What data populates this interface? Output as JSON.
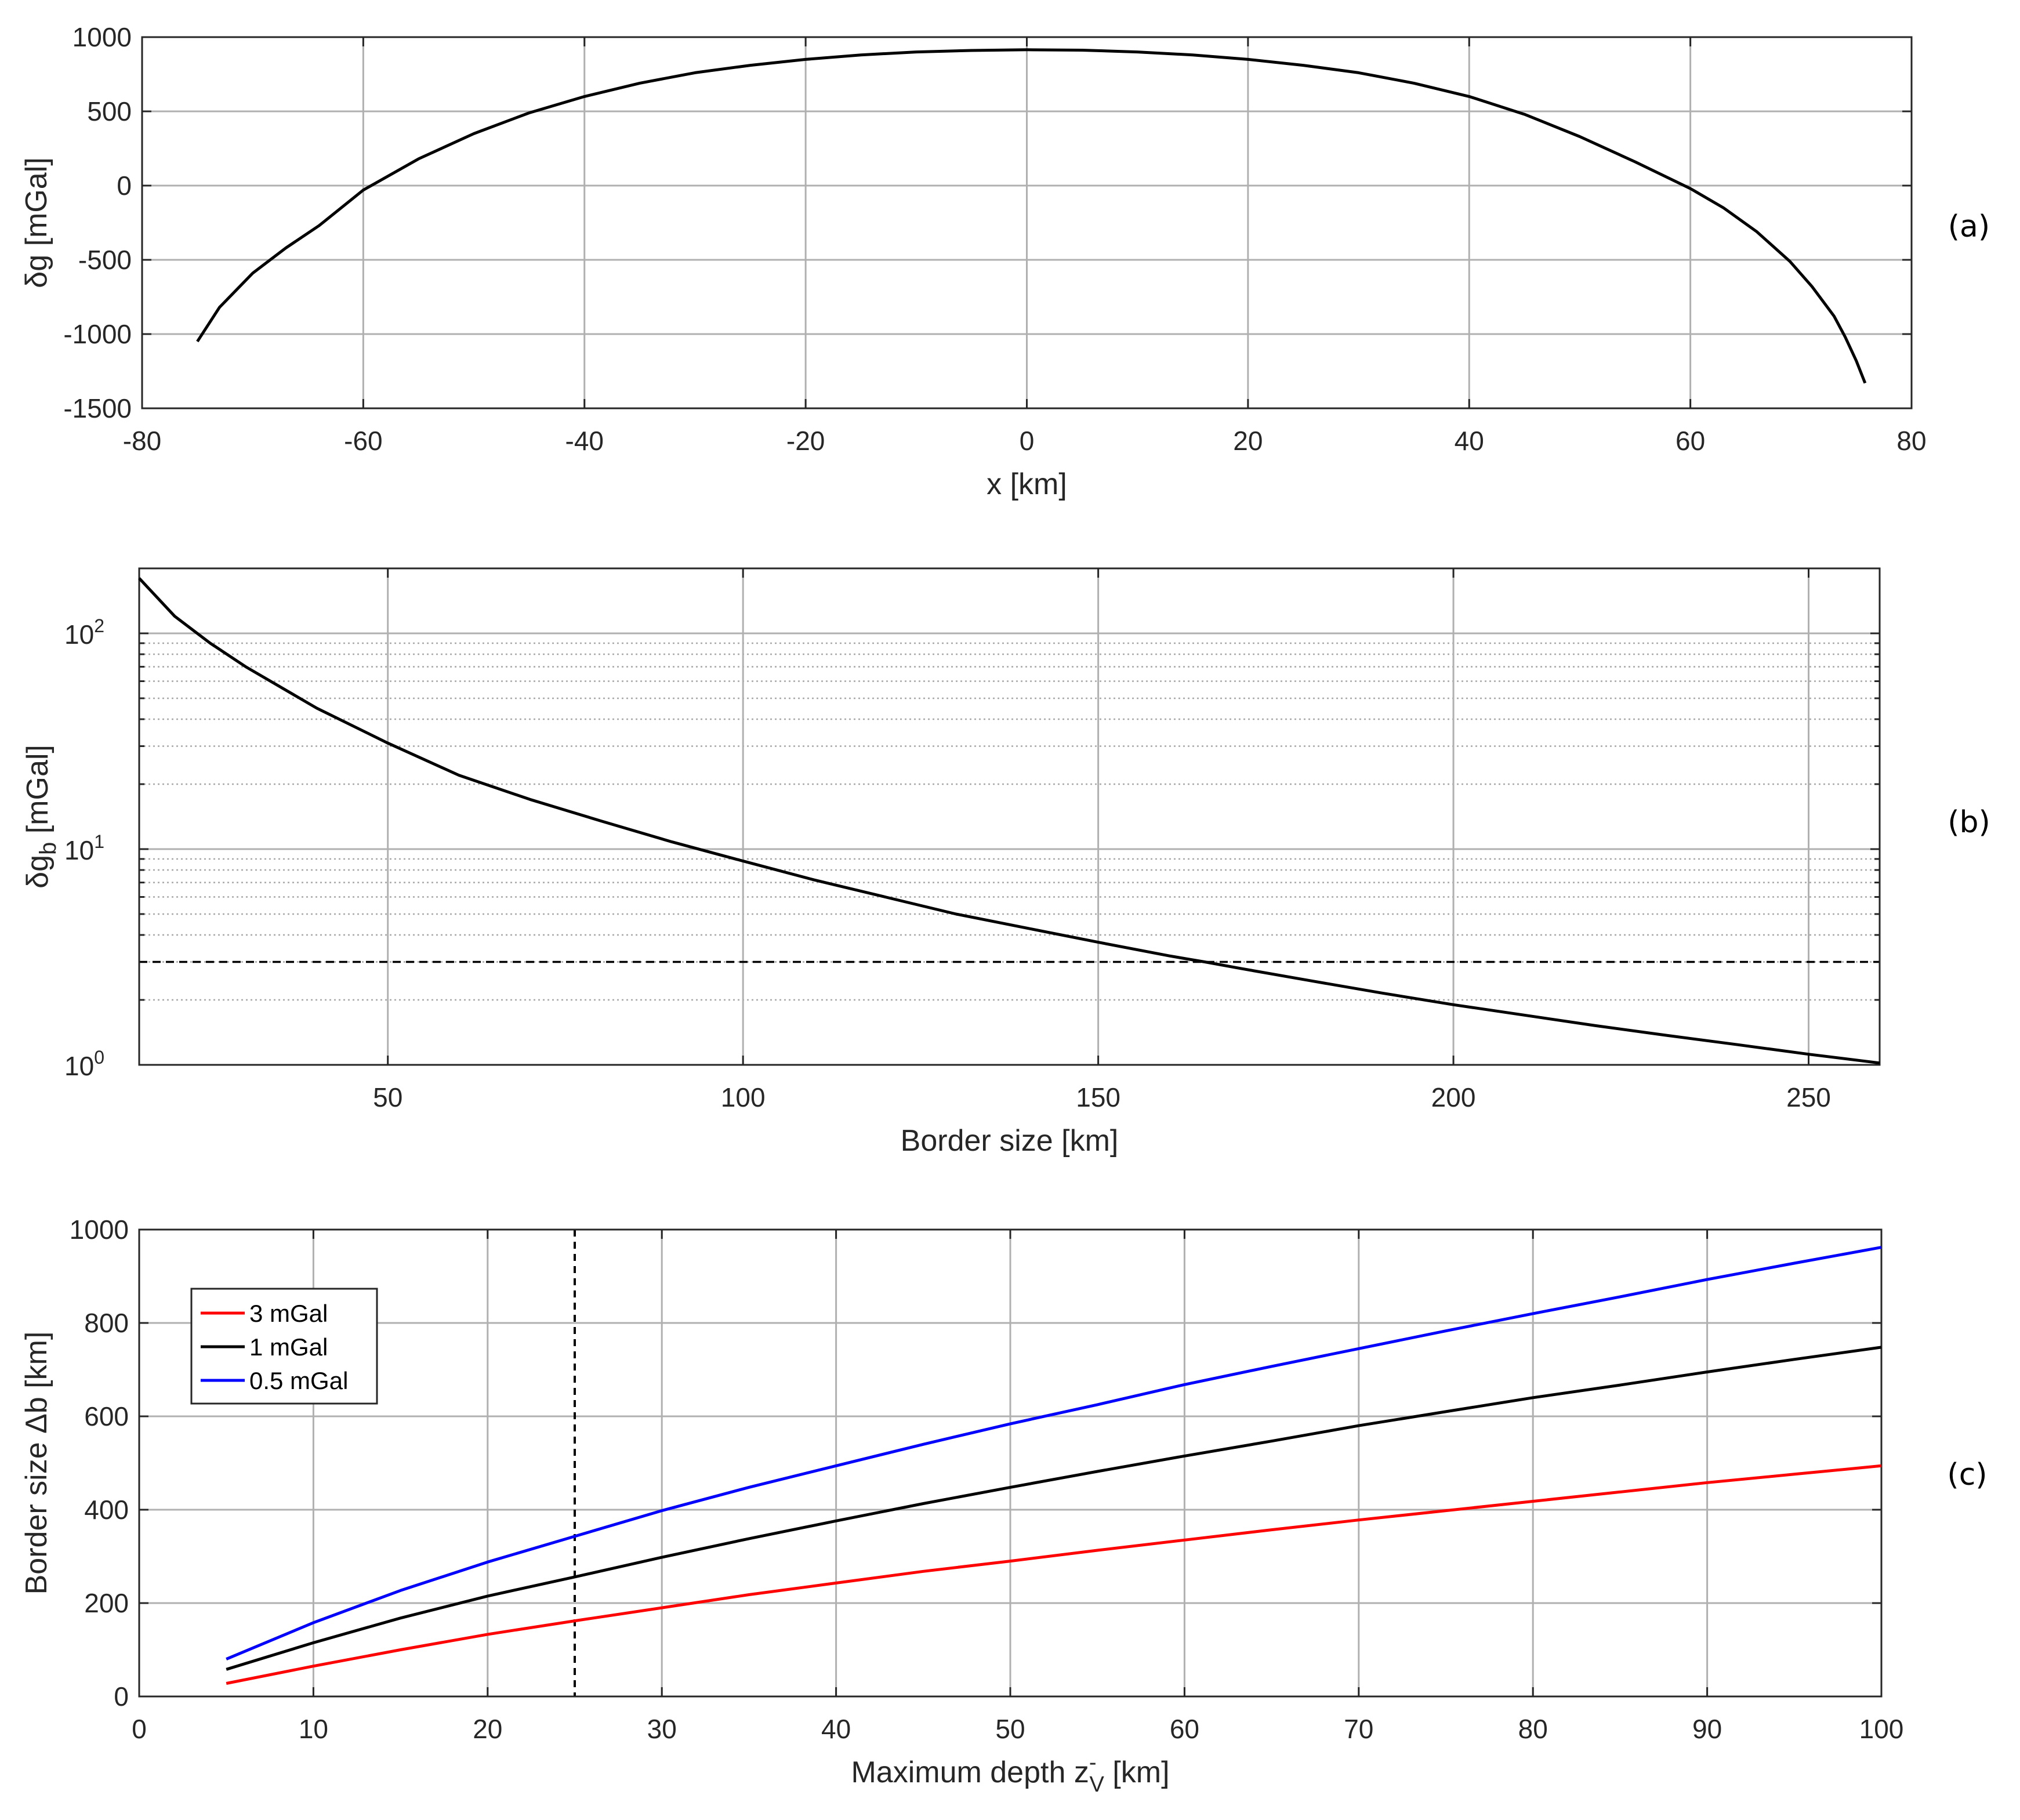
{
  "chart_data": [
    {
      "id": "a",
      "type": "line",
      "panel_label": "(a)",
      "xlabel": "x [km]",
      "ylabel": "δg [mGal]",
      "xlim": [
        -80,
        80
      ],
      "ylim": [
        -1500,
        1000
      ],
      "xticks": [
        -80,
        -60,
        -40,
        -20,
        0,
        20,
        40,
        60,
        80
      ],
      "yticks": [
        -1500,
        -1000,
        -500,
        0,
        500,
        1000
      ],
      "grid": true,
      "series": [
        {
          "name": "δg",
          "color": "#000000",
          "x": [
            -75,
            -73,
            -70,
            -67,
            -64,
            -60,
            -55,
            -50,
            -45,
            -40,
            -35,
            -30,
            -25,
            -20,
            -15,
            -10,
            -5,
            0,
            5,
            10,
            15,
            20,
            25,
            30,
            35,
            40,
            45,
            50,
            55,
            60,
            63,
            66,
            69,
            71,
            73,
            74,
            75,
            75.8
          ],
          "y": [
            -1050,
            -820,
            -590,
            -420,
            -270,
            -30,
            180,
            350,
            490,
            600,
            690,
            760,
            810,
            850,
            880,
            900,
            910,
            915,
            912,
            900,
            880,
            850,
            810,
            760,
            690,
            600,
            480,
            330,
            160,
            -20,
            -150,
            -310,
            -510,
            -680,
            -880,
            -1020,
            -1180,
            -1330
          ]
        }
      ]
    },
    {
      "id": "b",
      "type": "line",
      "panel_label": "(b)",
      "xlabel": "Border size [km]",
      "ylabel_main": "δg",
      "ylabel_sub": "b",
      "ylabel_unit": " [mGal]",
      "yscale": "log",
      "xlim": [
        15,
        260
      ],
      "ylim": [
        1,
        200
      ],
      "xticks": [
        50,
        100,
        150,
        200,
        250
      ],
      "yticks": [
        {
          "value": 100,
          "base": "10",
          "exp": "2"
        },
        {
          "value": 10,
          "base": "10",
          "exp": "1"
        },
        {
          "value": 1,
          "base": "10",
          "exp": "0"
        }
      ],
      "minor_ticks": [
        2,
        3,
        4,
        5,
        6,
        7,
        8,
        9,
        20,
        30,
        40,
        50,
        60,
        70,
        80,
        90
      ],
      "grid": true,
      "threshold": {
        "value": 3,
        "style": "dashed"
      },
      "series": [
        {
          "name": "δg_b",
          "color": "#000000",
          "x": [
            15,
            20,
            25,
            30,
            40,
            50,
            60,
            70,
            80,
            90,
            100,
            110,
            120,
            130,
            140,
            150,
            160,
            165,
            170,
            180,
            190,
            200,
            210,
            220,
            230,
            240,
            250,
            260
          ],
          "y": [
            180,
            120,
            90,
            70,
            45,
            31,
            22,
            17,
            13.5,
            10.8,
            8.8,
            7.2,
            6,
            5,
            4.3,
            3.7,
            3.2,
            3,
            2.8,
            2.45,
            2.15,
            1.9,
            1.7,
            1.52,
            1.37,
            1.24,
            1.12,
            1.02
          ]
        }
      ]
    },
    {
      "id": "c",
      "type": "line",
      "panel_label": "(c)",
      "xlabel_main": "Maximum depth z",
      "xlabel_sup": "-",
      "xlabel_sub": "V",
      "xlabel_unit": " [km]",
      "ylabel": "Border size Δb [km]",
      "xlim": [
        0,
        100
      ],
      "ylim": [
        0,
        1000
      ],
      "xticks": [
        0,
        10,
        20,
        30,
        40,
        50,
        60,
        70,
        80,
        90,
        100
      ],
      "yticks": [
        0,
        200,
        400,
        600,
        800,
        1000
      ],
      "grid": true,
      "vline": {
        "x": 25,
        "style": "dashed"
      },
      "legend": {
        "position": "top-left"
      },
      "series": [
        {
          "name": "3 mGal",
          "color": "#ff0000",
          "x": [
            5,
            10,
            15,
            20,
            25,
            30,
            35,
            40,
            45,
            50,
            55,
            60,
            65,
            70,
            75,
            80,
            85,
            90,
            95,
            100
          ],
          "y": [
            28,
            65,
            100,
            133,
            162,
            190,
            218,
            243,
            268,
            290,
            313,
            335,
            357,
            378,
            398,
            418,
            438,
            458,
            476,
            494
          ]
        },
        {
          "name": "1 mGal",
          "color": "#000000",
          "x": [
            5,
            10,
            15,
            20,
            25,
            30,
            35,
            40,
            45,
            50,
            55,
            60,
            65,
            70,
            75,
            80,
            85,
            90,
            95,
            100
          ],
          "y": [
            58,
            115,
            168,
            215,
            256,
            298,
            338,
            376,
            413,
            448,
            482,
            515,
            547,
            580,
            610,
            640,
            667,
            695,
            722,
            748
          ]
        },
        {
          "name": "0.5 mGal",
          "color": "#0000ff",
          "x": [
            5,
            10,
            15,
            20,
            25,
            30,
            35,
            40,
            45,
            50,
            55,
            60,
            65,
            70,
            75,
            80,
            85,
            90,
            95,
            100
          ],
          "y": [
            80,
            158,
            227,
            288,
            343,
            398,
            448,
            494,
            540,
            584,
            625,
            668,
            707,
            745,
            783,
            820,
            856,
            893,
            928,
            962
          ]
        }
      ]
    }
  ]
}
